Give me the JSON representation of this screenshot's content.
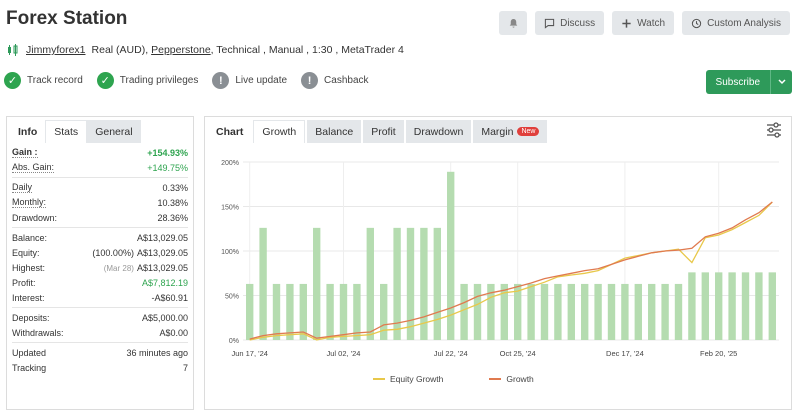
{
  "header": {
    "title": "Forex Station",
    "discuss_label": "Discuss",
    "watch_label": "Watch",
    "custom_analysis_label": "Custom Analysis"
  },
  "account": {
    "user": "Jimmyforex1",
    "type": "Real (AUD),",
    "broker": "Pepperstone",
    "details": ", Technical , Manual , 1:30 , MetaTrader 4"
  },
  "badges": [
    {
      "label": "Track record",
      "status": "ok"
    },
    {
      "label": "Trading privileges",
      "status": "ok"
    },
    {
      "label": "Live update",
      "status": "warn"
    },
    {
      "label": "Cashback",
      "status": "warn"
    }
  ],
  "subscribe_label": "Subscribe",
  "left_tabs": {
    "info": "Info",
    "stats": "Stats",
    "general": "General"
  },
  "stats": {
    "gain_k": "Gain :",
    "gain_v": "+154.93%",
    "abs_gain_k": "Abs. Gain:",
    "abs_gain_v": "+149.75%",
    "daily_k": "Daily",
    "daily_v": "0.33%",
    "monthly_k": "Monthly:",
    "monthly_v": "10.38%",
    "drawdown_k": "Drawdown:",
    "drawdown_v": "28.36%",
    "balance_k": "Balance:",
    "balance_v": "A$13,029.05",
    "equity_k": "Equity:",
    "equity_pct": "(100.00%)",
    "equity_v": "A$13,029.05",
    "highest_k": "Highest:",
    "highest_date": "(Mar 28)",
    "highest_v": "A$13,029.05",
    "profit_k": "Profit:",
    "profit_v": "A$7,812.19",
    "interest_k": "Interest:",
    "interest_v": "-A$60.91",
    "deposits_k": "Deposits:",
    "deposits_v": "A$5,000.00",
    "withdrawals_k": "Withdrawals:",
    "withdrawals_v": "A$0.00",
    "updated_k": "Updated",
    "updated_v": "36 minutes ago",
    "tracking_k": "Tracking",
    "tracking_v": "7"
  },
  "chart_tabs": {
    "chart": "Chart",
    "growth": "Growth",
    "balance": "Balance",
    "profit": "Profit",
    "drawdown": "Drawdown",
    "margin": "Margin",
    "new_badge": "New"
  },
  "colors": {
    "bar": "#b5dcb0",
    "growth": "#e07a4f",
    "equity": "#e8c84a",
    "accent": "#2e9a5a"
  },
  "chart_data": {
    "type": "bar+line",
    "ylim": [
      0,
      200
    ],
    "yticks": [
      "0%",
      "50%",
      "100%",
      "150%",
      "200%"
    ],
    "xtick_labels": [
      "Jun 17, '24",
      "Jul 02, '24",
      "Jul 22, '24",
      "Oct 25, '24",
      "Dec 17, '24",
      "Feb 20, '25"
    ],
    "bars": [
      63,
      126,
      63,
      63,
      63,
      126,
      63,
      63,
      63,
      126,
      63,
      126,
      126,
      126,
      126,
      189,
      63,
      63,
      63,
      63,
      63,
      63,
      63,
      63,
      63,
      63,
      63,
      63,
      63,
      63,
      63,
      63,
      63,
      76,
      76,
      76,
      76,
      76,
      76,
      76
    ],
    "series": [
      {
        "name": "Equity Growth",
        "values": [
          0,
          3,
          5,
          6,
          7,
          0,
          3,
          4,
          5,
          6,
          11,
          12,
          15,
          19,
          23,
          28,
          34,
          40,
          48,
          53,
          55,
          60,
          65,
          71,
          73,
          75,
          78,
          85,
          92,
          95,
          98,
          100,
          102,
          87,
          115,
          118,
          124,
          132,
          140,
          155
        ]
      },
      {
        "name": "Growth",
        "values": [
          1,
          5,
          7,
          8,
          9,
          2,
          4,
          6,
          8,
          9,
          17,
          19,
          22,
          26,
          31,
          36,
          42,
          49,
          53,
          56,
          60,
          64,
          69,
          72,
          75,
          78,
          80,
          85,
          90,
          94,
          98,
          100,
          101,
          103,
          116,
          120,
          126,
          135,
          143,
          155
        ]
      }
    ]
  }
}
